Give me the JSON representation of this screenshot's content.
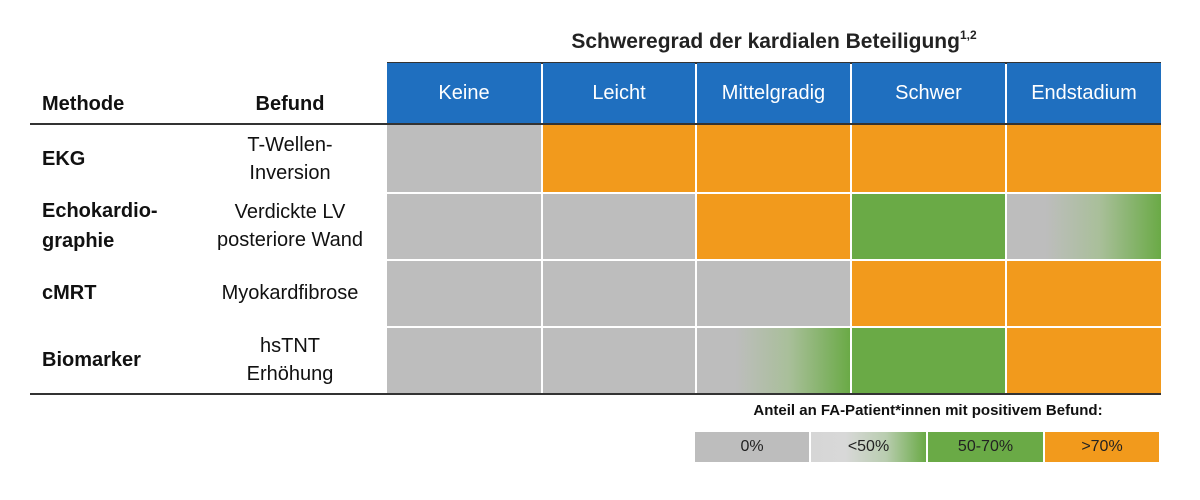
{
  "chart_data": {
    "type": "heatmap",
    "title": "Schweregrad der kardialen Beteiligung",
    "title_superscript": "1,2",
    "row_header_method": "Methode",
    "row_header_finding": "Befund",
    "columns": [
      "Keine",
      "Leicht",
      "Mittelgradig",
      "Schwer",
      "Endstadium"
    ],
    "rows": [
      {
        "method": [
          "EKG"
        ],
        "finding": [
          "T-Wellen-",
          "Inversion"
        ],
        "values": [
          "0%",
          ">70%",
          ">70%",
          ">70%",
          ">70%"
        ]
      },
      {
        "method": [
          "Echokardio-",
          "graphie"
        ],
        "finding": [
          "Verdickte LV",
          "posteriore Wand"
        ],
        "values": [
          "0%",
          "0%",
          ">70%",
          "50-70%",
          "<50%"
        ]
      },
      {
        "method": [
          "cMRT"
        ],
        "finding": [
          "Myokardfibrose"
        ],
        "values": [
          "0%",
          "0%",
          "0%",
          ">70%",
          ">70%"
        ]
      },
      {
        "method": [
          "Biomarker"
        ],
        "finding": [
          "hsTNT",
          "Erhöhung"
        ],
        "values": [
          "0%",
          "0%",
          "<50%",
          "50-70%",
          ">70%"
        ]
      }
    ],
    "legend_title": "Anteil an FA-Patient*innen mit positivem Befund:",
    "legend": [
      {
        "label": "0%",
        "color": "#bdbdbd"
      },
      {
        "label": "<50%",
        "color": "gradient"
      },
      {
        "label": "50-70%",
        "color": "#6aaa46"
      },
      {
        "label": ">70%",
        "color": "#f29a1c"
      }
    ]
  },
  "colors": {
    "header_blue": "#1f6fbf",
    "gray": "#bdbdbd",
    "green": "#6aaa46",
    "orange": "#f29a1c"
  }
}
